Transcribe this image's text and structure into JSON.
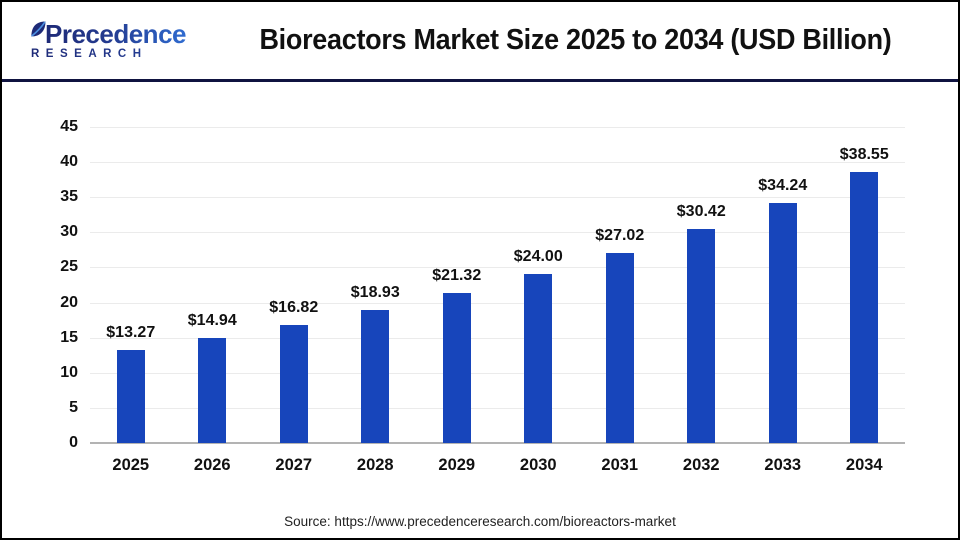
{
  "header": {
    "logo": {
      "brand": "Precedence",
      "sub": "RESEARCH",
      "leaf_icon": "leaf-icon",
      "brand_color_dark": "#1e2a77",
      "brand_color_light": "#2f6bd0"
    },
    "title": "Bioreactors Market Size 2025 to 2034 (USD Billion)"
  },
  "chart_data": {
    "type": "bar",
    "title": "Bioreactors Market Size 2025 to 2034 (USD Billion)",
    "categories": [
      "2025",
      "2026",
      "2027",
      "2028",
      "2029",
      "2030",
      "2031",
      "2032",
      "2033",
      "2034"
    ],
    "values": [
      13.27,
      14.94,
      16.82,
      18.93,
      21.32,
      24.0,
      27.02,
      30.42,
      34.24,
      38.55
    ],
    "value_labels": [
      "$13.27",
      "$14.94",
      "$16.82",
      "$18.93",
      "$21.32",
      "$24.00",
      "$27.02",
      "$30.42",
      "$34.24",
      "$38.55"
    ],
    "xlabel": "",
    "ylabel": "",
    "ylim": [
      0,
      45
    ],
    "yticks": [
      0,
      5,
      10,
      15,
      20,
      25,
      30,
      35,
      40,
      45
    ],
    "grid": "horizontal",
    "legend_position": "none",
    "bar_color": "#1745BB",
    "gridline_color": "#ebebeb",
    "axis_line_color": "#b3b3b3"
  },
  "footer": {
    "source": "Source: https://www.precedenceresearch.com/bioreactors-market"
  }
}
